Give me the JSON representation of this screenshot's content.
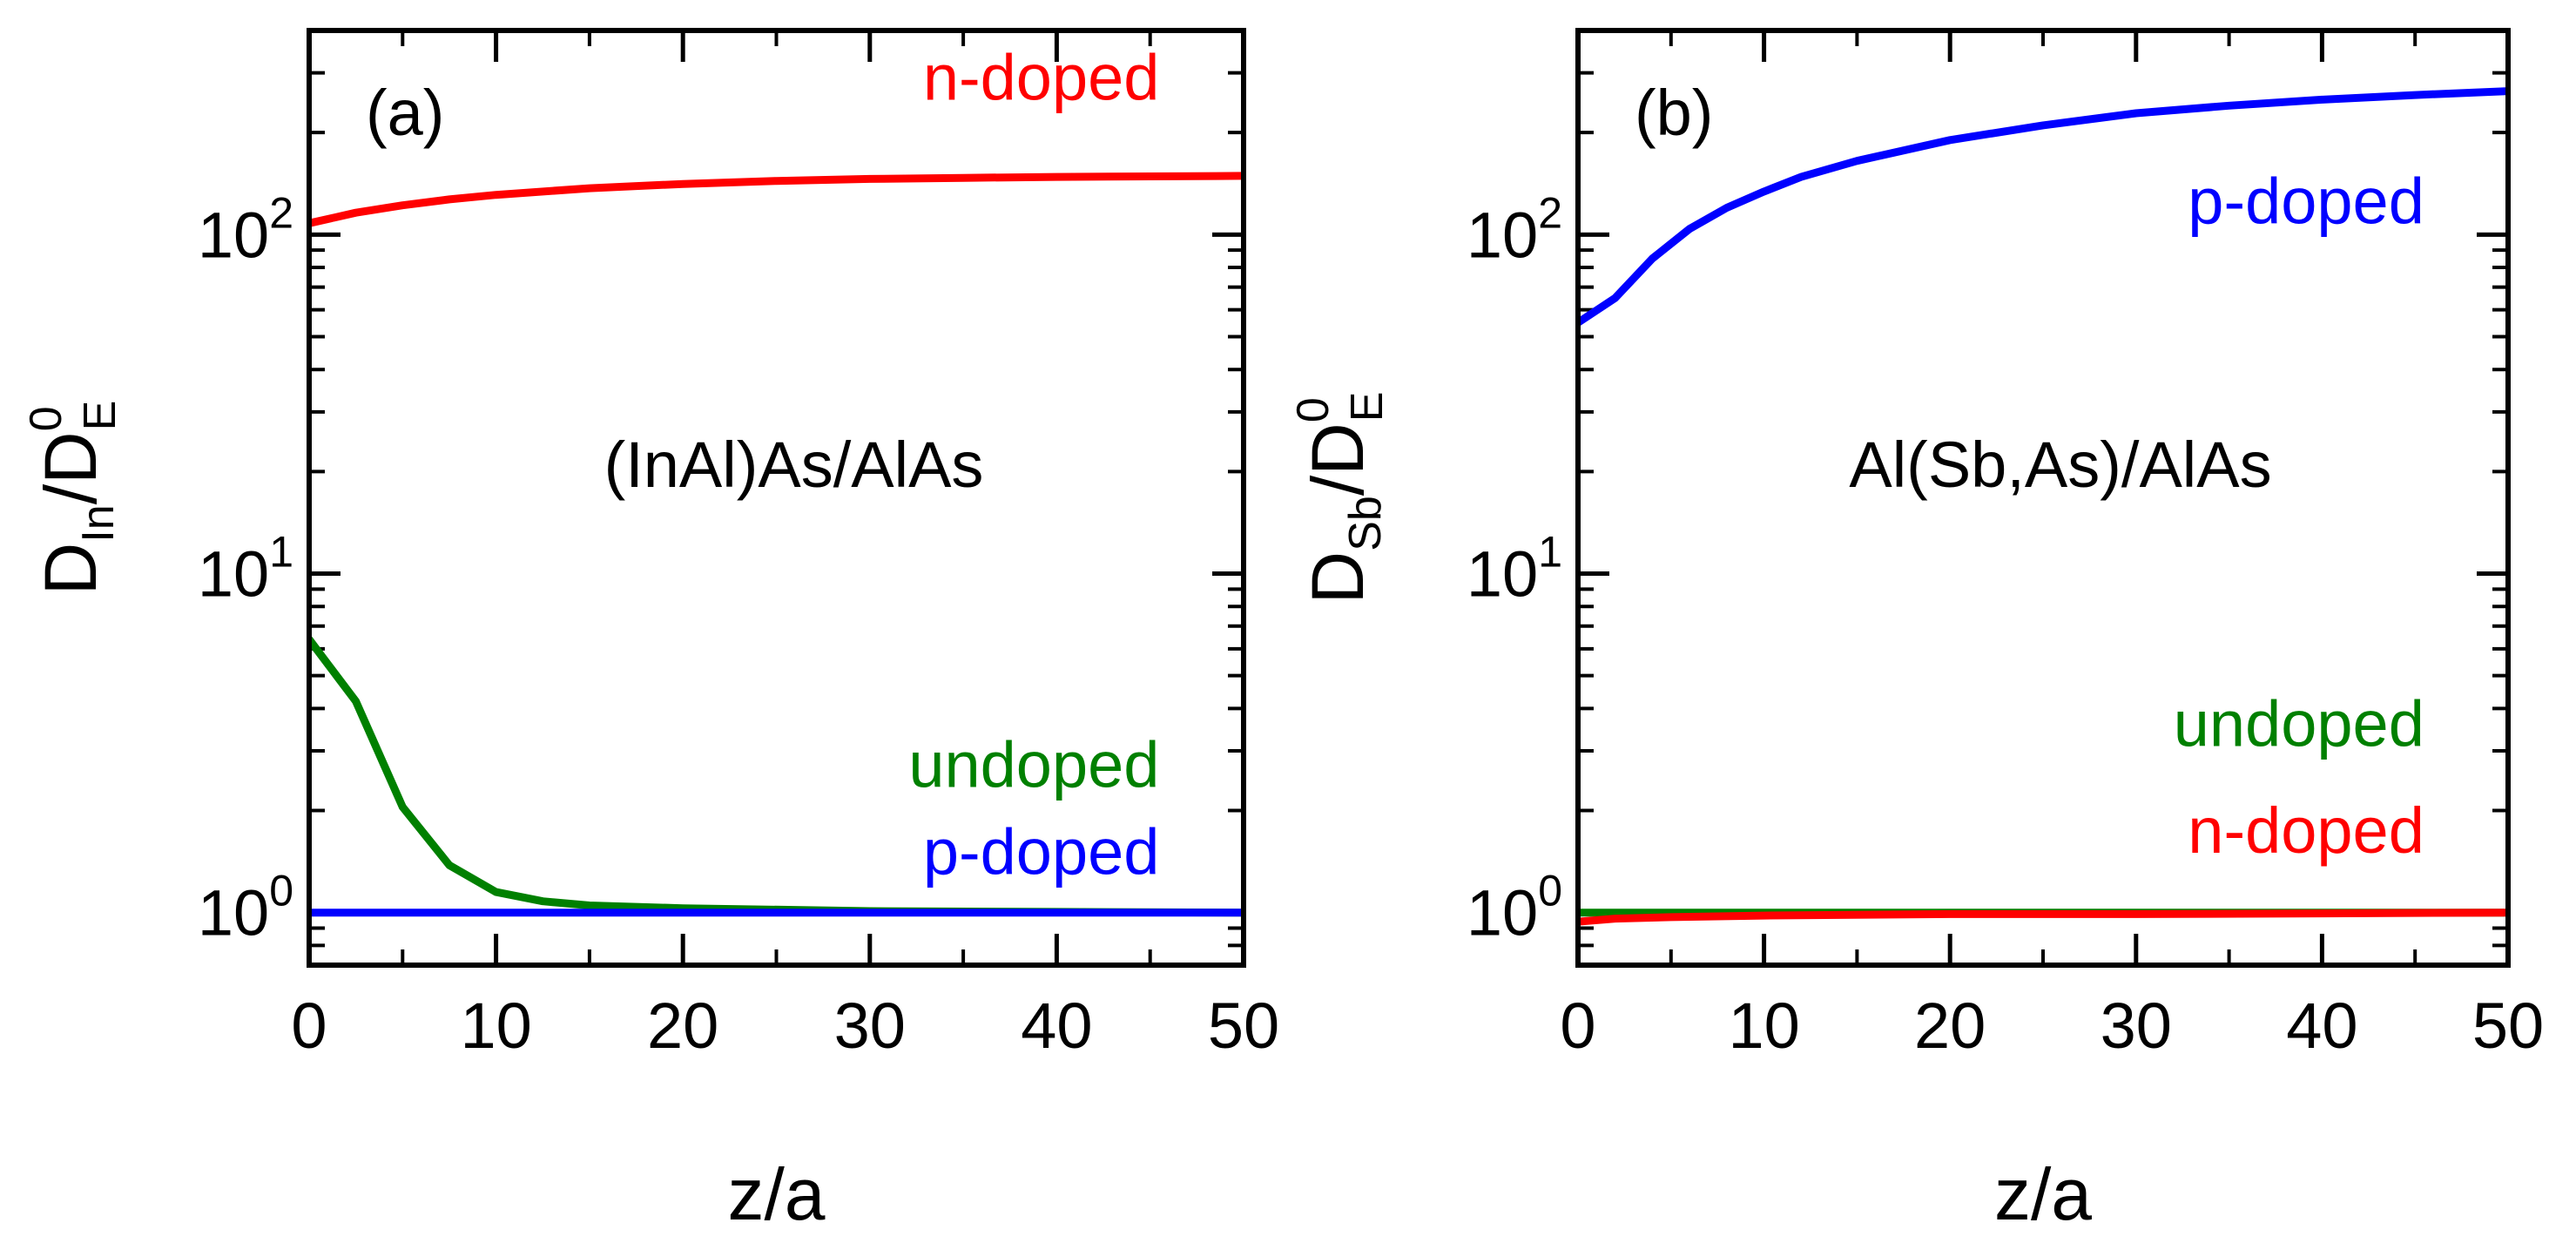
{
  "chart_data": [
    {
      "type": "line",
      "panel_label": "(a)",
      "annotation": "(InAl)As/AlAs",
      "xlabel": "z/a",
      "ylabel": {
        "main": "D",
        "sub": "In",
        "slash": "/",
        "main2": "D",
        "sup2": "0",
        "sub2": "E"
      },
      "xlim": [
        0,
        50
      ],
      "ylim": [
        0.7,
        400
      ],
      "yscale": "log",
      "xticks": [
        0,
        10,
        20,
        30,
        40,
        50
      ],
      "xtick_labels": [
        "0",
        "10",
        "20",
        "30",
        "40",
        "50"
      ],
      "yticks": [
        1,
        10,
        100
      ],
      "ytick_labels": [
        {
          "base": "10",
          "exp": "0"
        },
        {
          "base": "10",
          "exp": "1"
        },
        {
          "base": "10",
          "exp": "2"
        }
      ],
      "series": [
        {
          "name": "n-doped",
          "color": "#ff0000",
          "label_x": 45.5,
          "label_y": 250,
          "x": [
            0,
            2.5,
            5,
            7.5,
            10,
            15,
            20,
            25,
            30,
            35,
            40,
            45,
            50
          ],
          "y": [
            108,
            116,
            122,
            127,
            131,
            137,
            141,
            144,
            146,
            147,
            148,
            148.5,
            149
          ]
        },
        {
          "name": "undoped",
          "color": "#008000",
          "label_x": 45.5,
          "label_y": 2.35,
          "x": [
            0,
            2.5,
            5,
            7.5,
            10,
            12.5,
            15,
            20,
            30,
            40,
            50
          ],
          "y": [
            6.4,
            4.2,
            2.05,
            1.38,
            1.15,
            1.08,
            1.05,
            1.03,
            1.01,
            1.005,
            1.0
          ]
        },
        {
          "name": "p-doped",
          "color": "#0000ff",
          "label_x": 45.5,
          "label_y": 1.3,
          "x": [
            0,
            10,
            20,
            30,
            40,
            50
          ],
          "y": [
            1.0,
            1.0,
            1.0,
            1.0,
            1.0,
            1.0
          ]
        }
      ]
    },
    {
      "type": "line",
      "panel_label": "(b)",
      "annotation": "Al(Sb,As)/AlAs",
      "xlabel": "z/a",
      "ylabel": {
        "main": "D",
        "sub": "Sb",
        "slash": "/",
        "main2": "D",
        "sup2": "0",
        "sub2": "E"
      },
      "xlim": [
        0,
        50
      ],
      "ylim": [
        0.7,
        400
      ],
      "yscale": "log",
      "xticks": [
        0,
        10,
        20,
        30,
        40,
        50
      ],
      "xtick_labels": [
        "0",
        "10",
        "20",
        "30",
        "40",
        "50"
      ],
      "yticks": [
        1,
        10,
        100
      ],
      "ytick_labels": [
        {
          "base": "10",
          "exp": "0"
        },
        {
          "base": "10",
          "exp": "1"
        },
        {
          "base": "10",
          "exp": "2"
        }
      ],
      "series": [
        {
          "name": "p-doped",
          "color": "#0000ff",
          "label_x": 45.5,
          "label_y": 108,
          "x": [
            0,
            2,
            4,
            6,
            8,
            10,
            12,
            15,
            20,
            25,
            30,
            35,
            40,
            45,
            50
          ],
          "y": [
            55,
            65,
            85,
            104,
            120,
            134,
            148,
            165,
            190,
            210,
            228,
            240,
            250,
            258,
            265
          ]
        },
        {
          "name": "undoped",
          "color": "#008000",
          "label_x": 45.5,
          "label_y": 3.1,
          "x": [
            0,
            10,
            20,
            30,
            40,
            50
          ],
          "y": [
            1.0,
            1.0,
            1.0,
            1.0,
            1.0,
            1.0
          ]
        },
        {
          "name": "n-doped",
          "color": "#ff0000",
          "label_x": 45.5,
          "label_y": 1.5,
          "x": [
            0,
            2,
            5,
            10,
            20,
            30,
            40,
            50
          ],
          "y": [
            0.94,
            0.96,
            0.97,
            0.98,
            0.99,
            0.99,
            0.995,
            1.0
          ]
        }
      ]
    }
  ]
}
